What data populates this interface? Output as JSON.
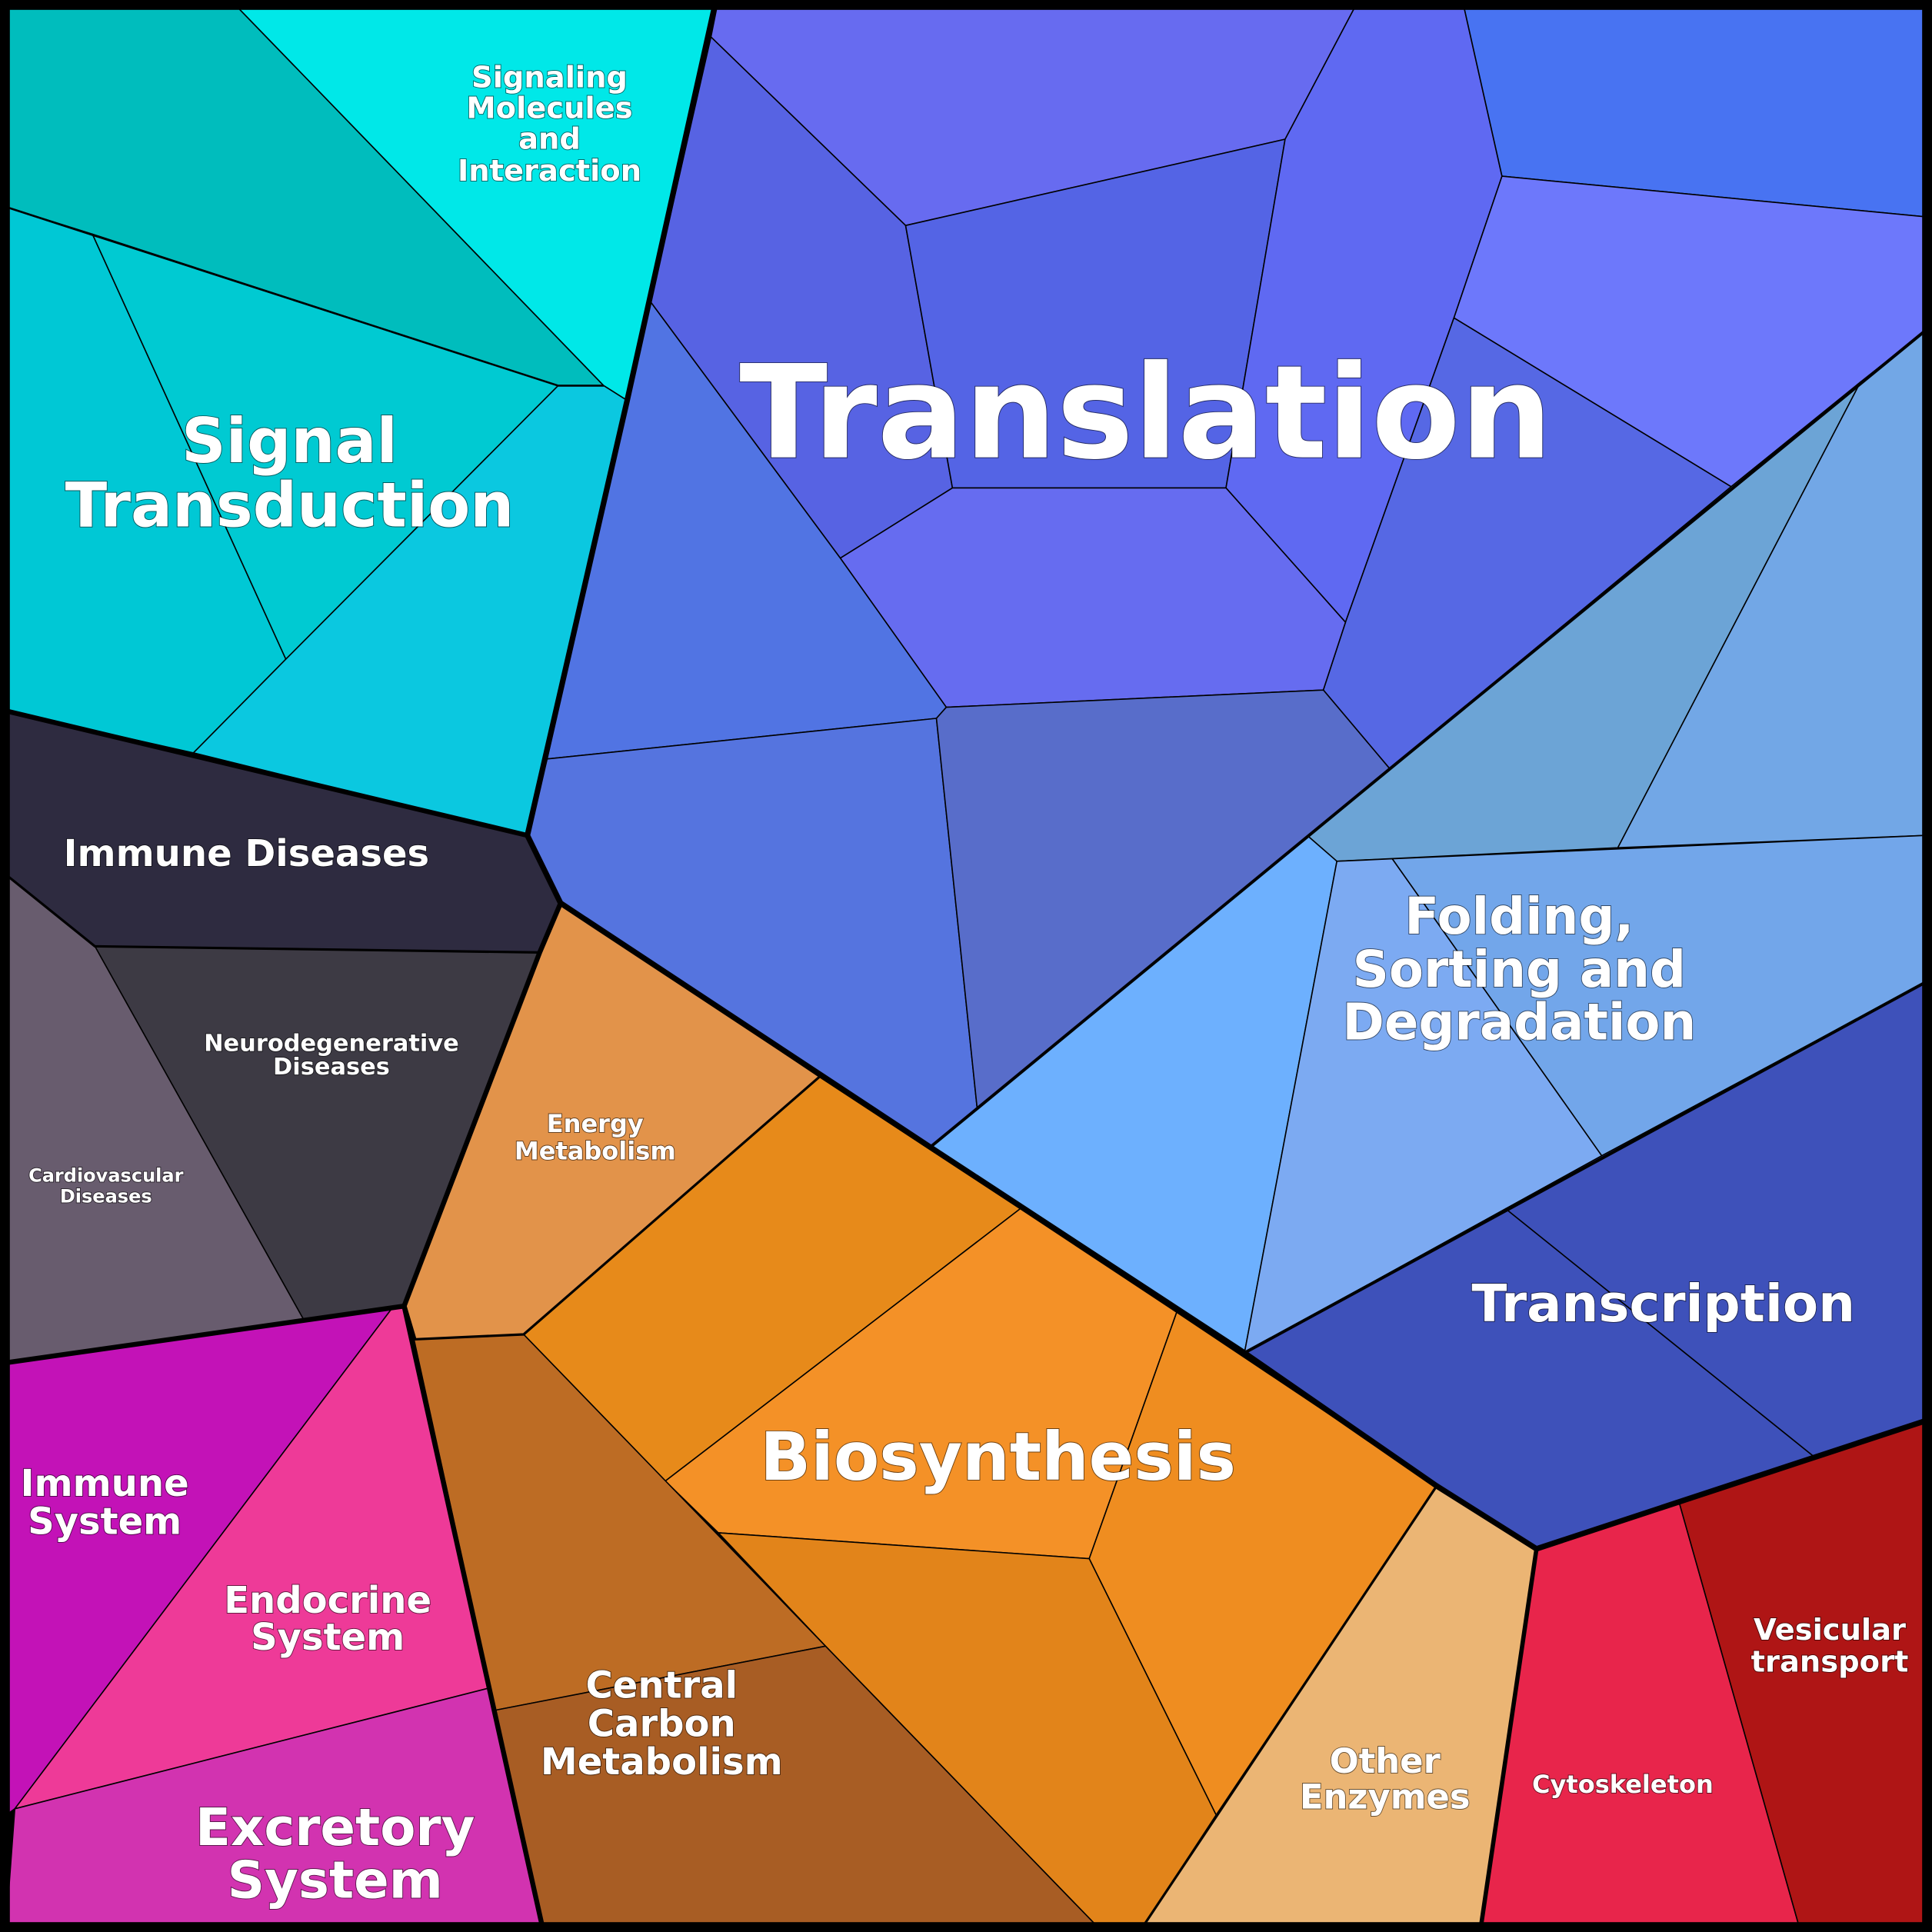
{
  "labels": {
    "signaling_molecules": [
      "Signaling",
      "Molecules",
      "and",
      "Interaction"
    ],
    "signal_transduction": [
      "Signal",
      "Transduction"
    ],
    "translation": [
      "Translation"
    ],
    "immune_diseases": [
      "Immune Diseases"
    ],
    "neurodegenerative": [
      "Neurodegenerative",
      "Diseases"
    ],
    "cardiovascular": [
      "Cardiovascular",
      "Diseases"
    ],
    "energy_metabolism": [
      "Energy",
      "Metabolism"
    ],
    "folding": [
      "Folding,",
      "Sorting and",
      "Degradation"
    ],
    "transcription": [
      "Transcription"
    ],
    "biosynthesis": [
      "Biosynthesis"
    ],
    "immune_system": [
      "Immune",
      "System"
    ],
    "endocrine": [
      "Endocrine",
      "System"
    ],
    "central_carbon": [
      "Central",
      "Carbon",
      "Metabolism"
    ],
    "excretory": [
      "Excretory",
      "System"
    ],
    "other_enzymes": [
      "Other",
      "Enzymes"
    ],
    "cytoskeleton": [
      "Cytoskeleton"
    ],
    "vesicular": [
      "Vesicular",
      "transport"
    ]
  },
  "cell_colors": [
    "#00BDBD",
    "#00E8E8",
    "#00C8D5",
    "#00CAD2",
    "#0BC8E0",
    "#676BF0",
    "#5763E3",
    "#5464E5",
    "#5F69F2",
    "#4873F2",
    "#6D78FB",
    "#5668E4",
    "#666CF0",
    "#5174E3",
    "#5574DF",
    "#586DCA",
    "#6CA4D6",
    "#72A7E6",
    "#6DB0FE",
    "#7CAAF2",
    "#72A6EA",
    "#3E51BA",
    "#3E51BA",
    "#E8254B",
    "#AF1515",
    "#EBB574",
    "#E2934A",
    "#E78A1A",
    "#F49127",
    "#EF8D20",
    "#E2841A",
    "#BD6C24",
    "#A85D24",
    "#2E2B40",
    "#3D3A44",
    "#685C6E",
    "#C312B7",
    "#EE3A98",
    "#D233B0"
  ],
  "border_color": "#000000",
  "label_color": "#FFFFFF"
}
